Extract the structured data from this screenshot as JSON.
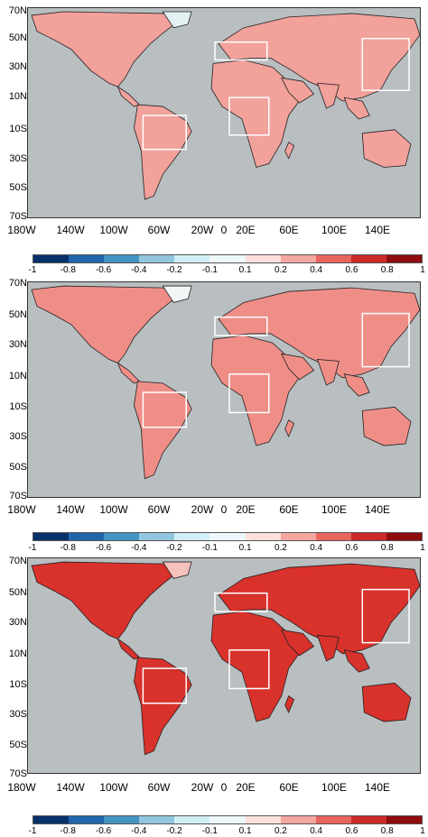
{
  "lat_labels": [
    "70N",
    "50N",
    "30N",
    "10N",
    "10S",
    "30S",
    "50S",
    "70S"
  ],
  "lon_labels": [
    "180W",
    "140W",
    "100W",
    "60W",
    "20W",
    "0",
    "20E",
    "60E",
    "100E",
    "140E"
  ],
  "colorbar": {
    "ticks": [
      "-1",
      "-0.8",
      "-0.6",
      "-0.4",
      "-0.2",
      "-0.1",
      "0.1",
      "0.2",
      "0.4",
      "0.6",
      "0.8",
      "1"
    ],
    "colors": [
      "#08306b",
      "#2166ac",
      "#4393c3",
      "#92c5de",
      "#d1eef7",
      "#eef8fb",
      "#fde0dc",
      "#f4a6a0",
      "#e8645f",
      "#cc2a27",
      "#8e0c0e"
    ]
  },
  "panels": [
    {
      "name": "panel-1",
      "intensity": "moderate"
    },
    {
      "name": "panel-2",
      "intensity": "moderate"
    },
    {
      "name": "panel-3",
      "intensity": "strong"
    }
  ]
}
